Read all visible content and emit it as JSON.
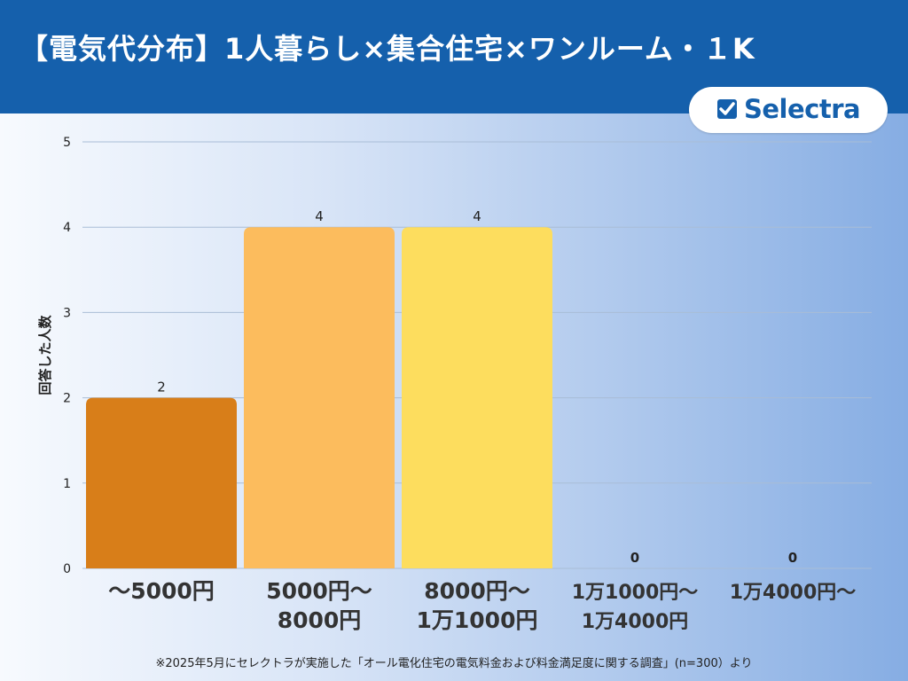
{
  "header": {
    "title": "【電気代分布】1人暮らし×集合住宅×ワンルーム・１K"
  },
  "logo": {
    "text": "Selectra",
    "icon": "checkbox-icon"
  },
  "chart_data": {
    "type": "bar",
    "categories": [
      [
        "〜5000円"
      ],
      [
        "5000円〜",
        "8000円"
      ],
      [
        "8000円〜",
        "1万1000円"
      ],
      [
        "1万1000円〜",
        "1万4000円"
      ],
      [
        "1万4000円〜"
      ]
    ],
    "values": [
      2,
      4,
      4,
      0,
      0
    ],
    "colors": [
      "#d87e19",
      "#fcbc5d",
      "#fddd5e",
      "#d87e19",
      "#d87e19"
    ],
    "ylabel": "回答した人数",
    "ylim": [
      0,
      5
    ],
    "yticks": [
      0,
      1,
      2,
      3,
      4,
      5
    ],
    "grid": true
  },
  "footnote": "※2025年5月にセレクトラが実施した「オール電化住宅の電気料金および料金満足度に関する調査」(n=300）より",
  "colors": {
    "header": "#1560ac",
    "text": "#222222",
    "grid": "#a9bdd6"
  }
}
